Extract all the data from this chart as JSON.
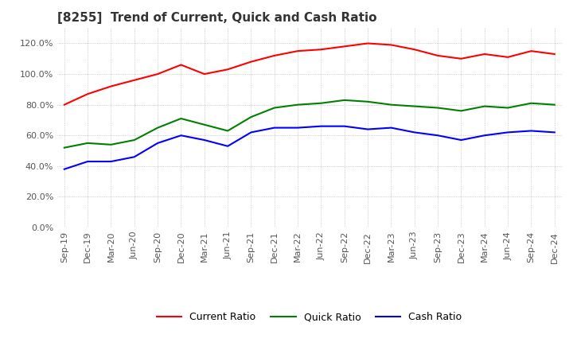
{
  "title": "[8255]  Trend of Current, Quick and Cash Ratio",
  "x_labels": [
    "Sep-19",
    "Dec-19",
    "Mar-20",
    "Jun-20",
    "Sep-20",
    "Dec-20",
    "Mar-21",
    "Jun-21",
    "Sep-21",
    "Dec-21",
    "Mar-22",
    "Jun-22",
    "Sep-22",
    "Dec-22",
    "Mar-23",
    "Jun-23",
    "Sep-23",
    "Dec-23",
    "Mar-24",
    "Jun-24",
    "Sep-24",
    "Dec-24"
  ],
  "current_ratio": [
    80,
    87,
    92,
    96,
    100,
    106,
    100,
    103,
    108,
    112,
    115,
    116,
    118,
    120,
    119,
    116,
    112,
    110,
    113,
    111,
    115,
    113
  ],
  "quick_ratio": [
    52,
    55,
    54,
    57,
    65,
    71,
    67,
    63,
    72,
    78,
    80,
    81,
    83,
    82,
    80,
    79,
    78,
    76,
    79,
    78,
    81,
    80
  ],
  "cash_ratio": [
    38,
    43,
    43,
    46,
    55,
    60,
    57,
    53,
    62,
    65,
    65,
    66,
    66,
    64,
    65,
    62,
    60,
    57,
    60,
    62,
    63,
    62
  ],
  "ylim": [
    0,
    130
  ],
  "yticks": [
    0,
    20,
    40,
    60,
    80,
    100,
    120
  ],
  "current_color": "#FF0000",
  "quick_color": "#008000",
  "cash_color": "#0000FF",
  "background_color": "#FFFFFF",
  "grid_color": "#AAAAAA",
  "title_fontsize": 11,
  "tick_fontsize": 8,
  "legend_fontsize": 9
}
